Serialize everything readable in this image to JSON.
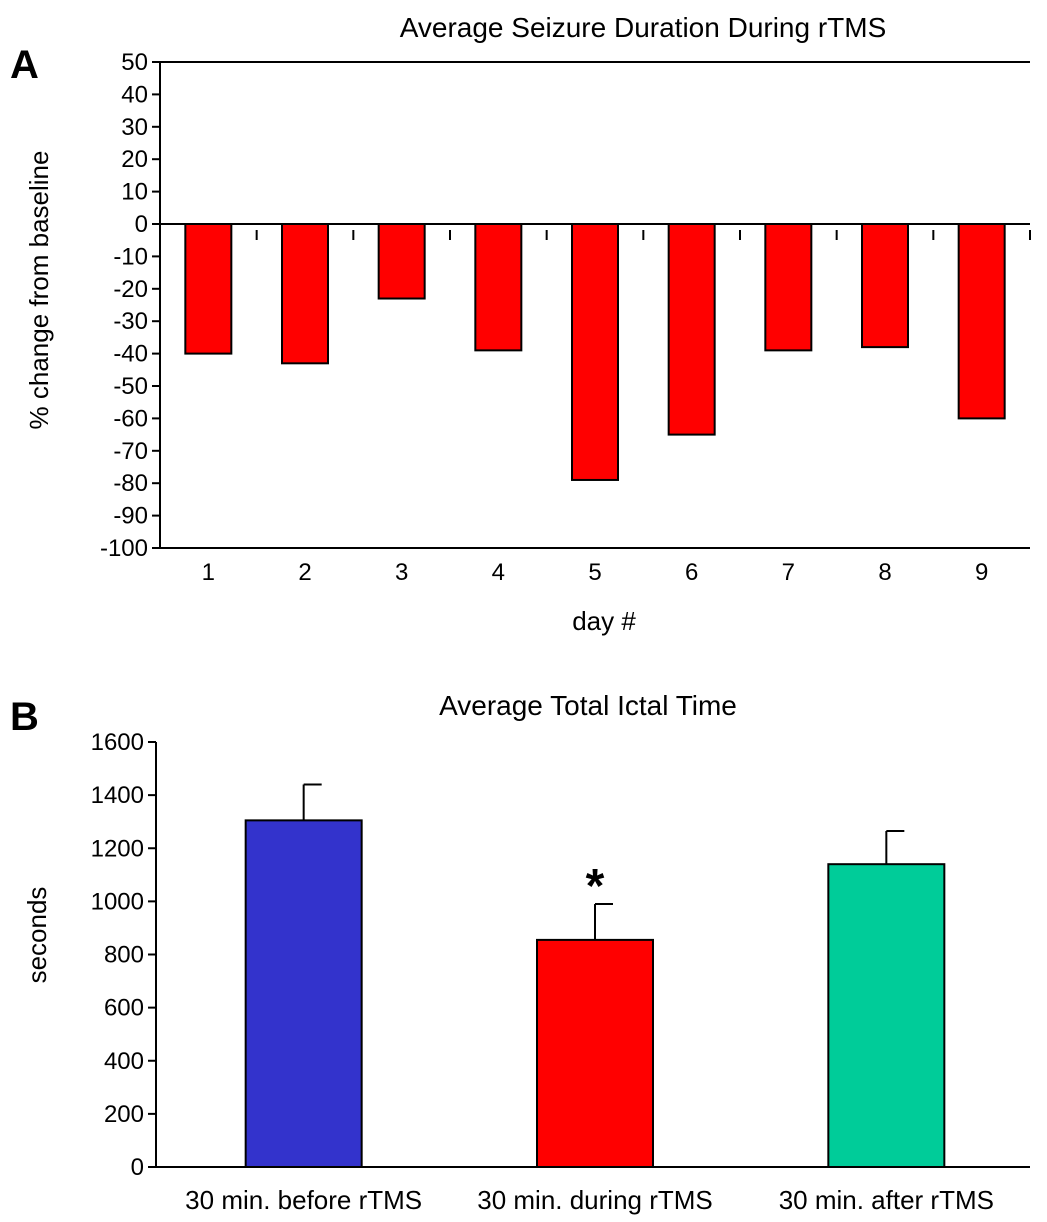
{
  "chart_data": [
    {
      "panel": "A",
      "type": "bar",
      "title": "Average Seizure Duration During rTMS",
      "xlabel": "day #",
      "ylabel": "% change from baseline",
      "categories": [
        "1",
        "2",
        "3",
        "4",
        "5",
        "6",
        "7",
        "8",
        "9"
      ],
      "values": [
        -40,
        -43,
        -23,
        -39,
        -79,
        -65,
        -39,
        -38,
        -60
      ],
      "ylim": [
        -100,
        50
      ],
      "yticks": [
        "50",
        "40",
        "30",
        "20",
        "10",
        "0",
        "-10",
        "-20",
        "-30",
        "-40",
        "-50",
        "-60",
        "-70",
        "-80",
        "-90",
        "-100"
      ],
      "bar_color": "#ff0000",
      "grid": false
    },
    {
      "panel": "B",
      "type": "bar",
      "title": "Average Total Ictal Time",
      "xlabel": "",
      "ylabel": "seconds",
      "categories": [
        "30 min. before rTMS",
        "30 min. during rTMS",
        "30 min. after rTMS"
      ],
      "values": [
        1305,
        855,
        1140
      ],
      "error_upper": [
        1440,
        990,
        1265
      ],
      "colors": [
        "#3333cc",
        "#ff0000",
        "#00cc99"
      ],
      "annotations": [
        {
          "category": "30 min. during rTMS",
          "text": "*"
        }
      ],
      "ylim": [
        0,
        1600
      ],
      "yticks": [
        "0",
        "200",
        "400",
        "600",
        "800",
        "1000",
        "1200",
        "1400",
        "1600"
      ],
      "grid": false
    }
  ]
}
